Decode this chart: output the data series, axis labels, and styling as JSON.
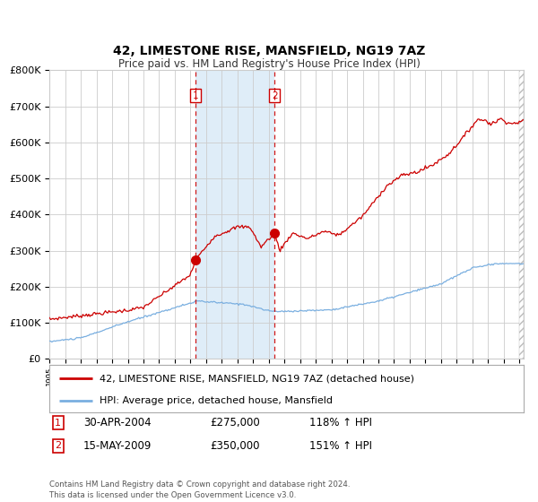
{
  "title": "42, LIMESTONE RISE, MANSFIELD, NG19 7AZ",
  "subtitle": "Price paid vs. HM Land Registry's House Price Index (HPI)",
  "legend_line1": "42, LIMESTONE RISE, MANSFIELD, NG19 7AZ (detached house)",
  "legend_line2": "HPI: Average price, detached house, Mansfield",
  "note": "Contains HM Land Registry data © Crown copyright and database right 2024.\nThis data is licensed under the Open Government Licence v3.0.",
  "sale1_date": 2004.33,
  "sale1_price": 275000,
  "sale2_date": 2009.37,
  "sale2_price": 350000,
  "red_color": "#cc0000",
  "blue_color": "#7aafe0",
  "shading_color": "#daeaf7",
  "grid_color": "#cccccc",
  "bg_color": "#ffffff",
  "hatch_color": "#bbbbbb",
  "ylim": [
    0,
    800000
  ],
  "xlim_start": 1995.0,
  "xlim_end": 2025.3
}
